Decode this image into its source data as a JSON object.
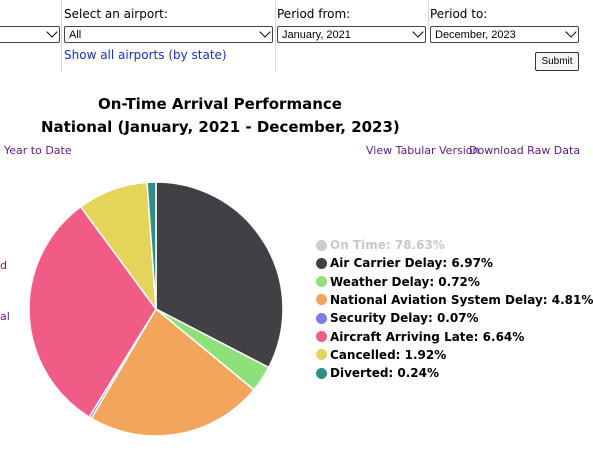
{
  "filters": {
    "state_value": "",
    "airport_label": "Select an airport:",
    "airport_value": "All",
    "show_all_link": "Show all airports (by state)",
    "period_from_label": "Period from:",
    "period_from_value": "January, 2021",
    "period_to_label": "Period to:",
    "period_to_value": "December, 2023",
    "submit_label": "Submit"
  },
  "chart_header": {
    "title_line1": "On-Time Arrival Performance",
    "title_line2": "National (January, 2021 - December, 2023)"
  },
  "links": {
    "left_cut": "Year to Date",
    "tabular": "View Tabular Version",
    "raw": "Download Raw Data",
    "side_cut_1": "d",
    "side_cut_2": "al"
  },
  "chart_data": {
    "type": "pie",
    "title": "On-Time Arrival Performance National (January, 2021 - December, 2023)",
    "legend_position": "right",
    "slices": [
      {
        "name": "On Time",
        "value": 78.63,
        "label": "On Time: 78.63%",
        "color": "#cccccc",
        "hidden": true
      },
      {
        "name": "Air Carrier Delay",
        "value": 6.97,
        "label": "Air Carrier Delay: 6.97%",
        "color": "#404045"
      },
      {
        "name": "Weather Delay",
        "value": 0.72,
        "label": "Weather Delay: 0.72%",
        "color": "#8ee07a"
      },
      {
        "name": "National Aviation System Delay",
        "value": 4.81,
        "label": "National Aviation System Delay: 4.81%",
        "color": "#f4a55c"
      },
      {
        "name": "Security Delay",
        "value": 0.07,
        "label": "Security Delay: 0.07%",
        "color": "#7c7ce8"
      },
      {
        "name": "Aircraft Arriving Late",
        "value": 6.64,
        "label": "Aircraft Arriving Late: 6.64%",
        "color": "#f05c84"
      },
      {
        "name": "Cancelled",
        "value": 1.92,
        "label": "Cancelled: 1.92%",
        "color": "#e4d45a"
      },
      {
        "name": "Diverted",
        "value": 0.24,
        "label": "Diverted: 0.24%",
        "color": "#2e8f8a"
      }
    ]
  }
}
